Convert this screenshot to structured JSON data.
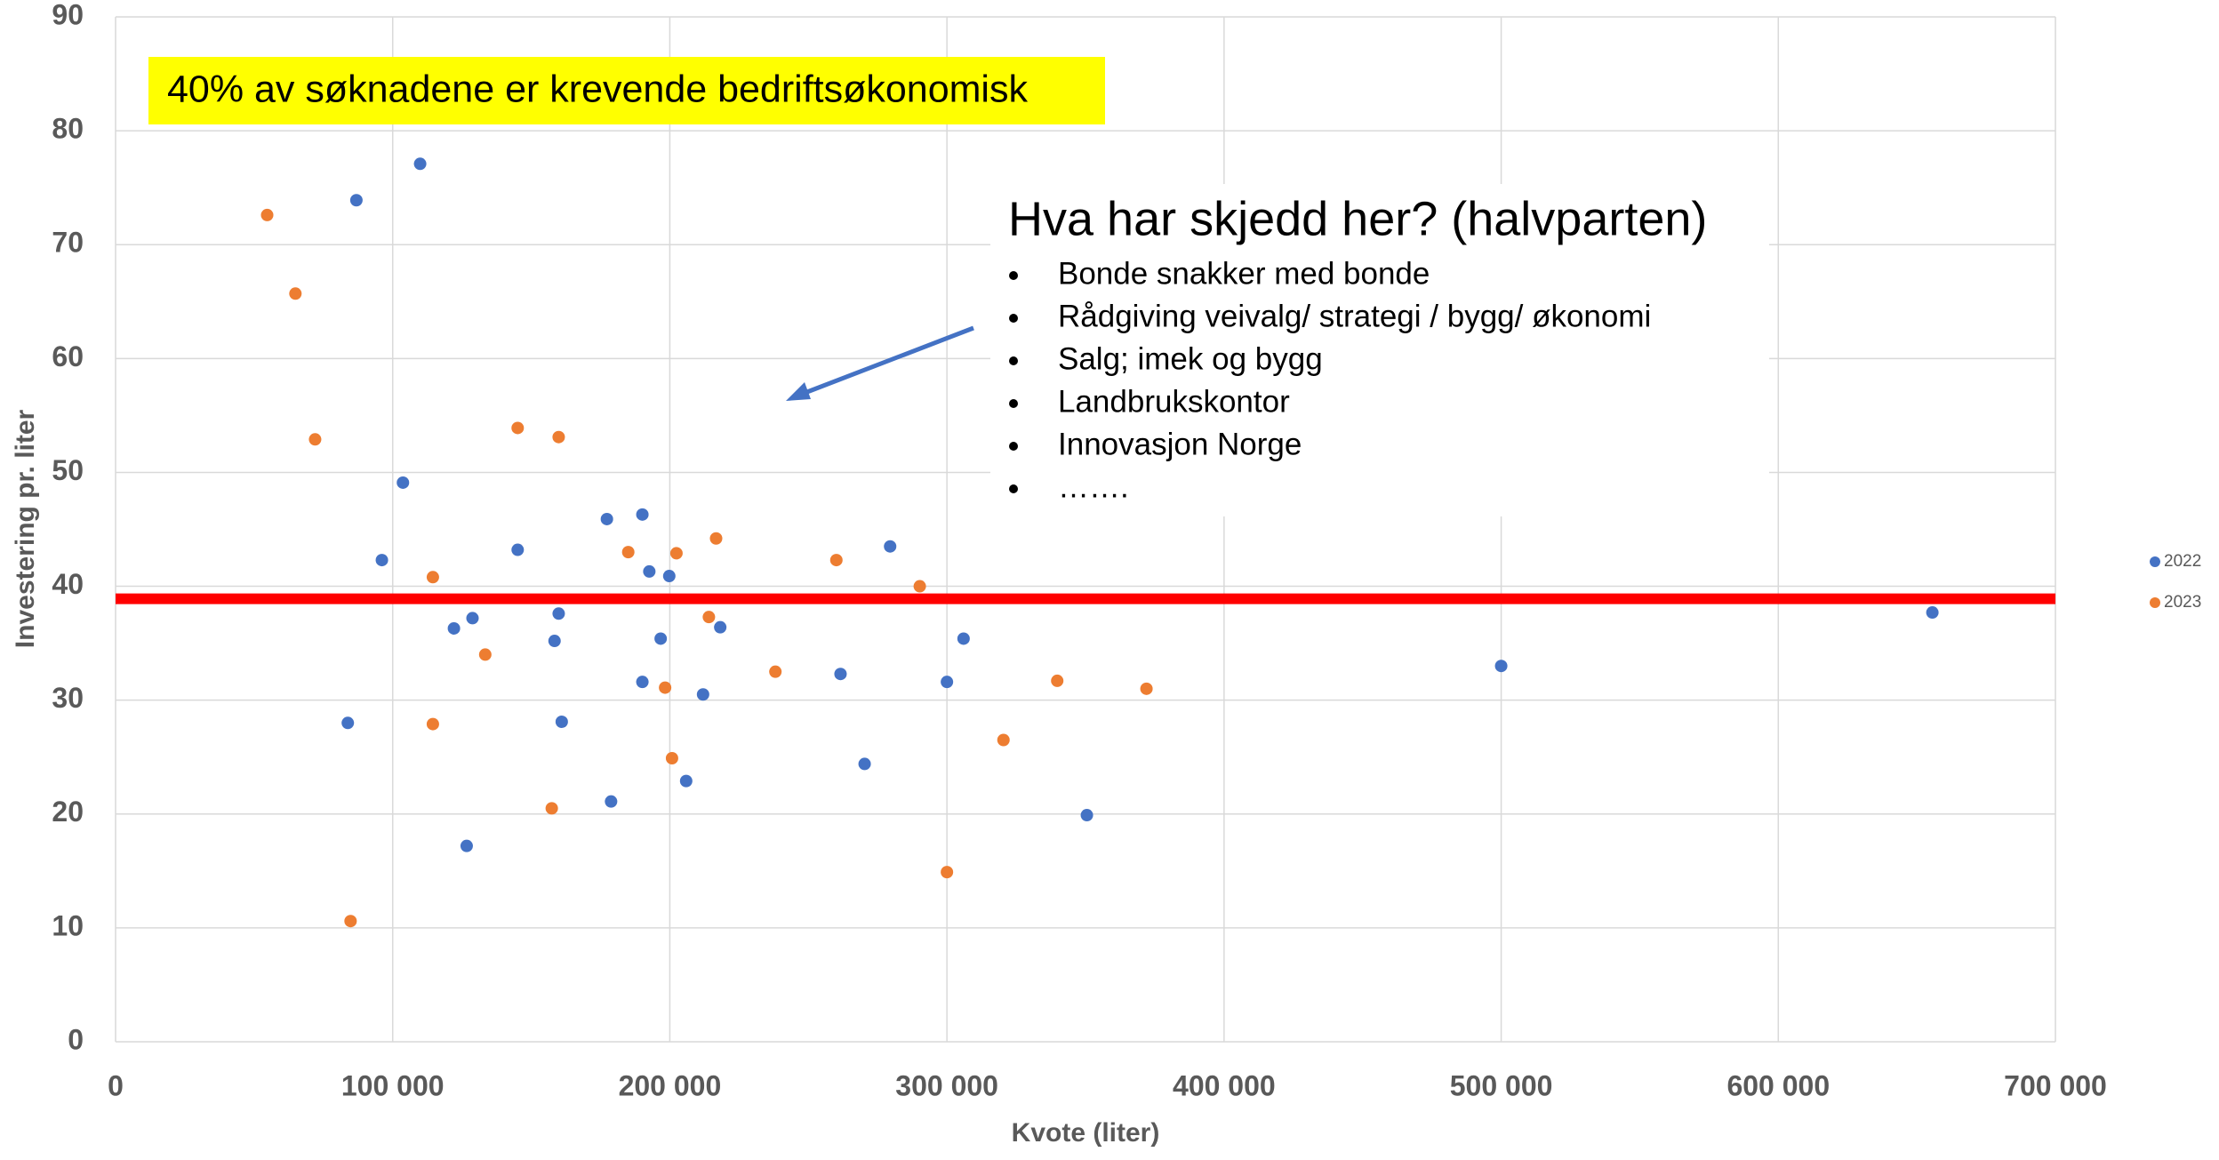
{
  "chart_data": {
    "type": "scatter",
    "xlabel": "Kvote (liter)",
    "ylabel": "Investering pr. liter",
    "xlim": [
      0,
      700000
    ],
    "ylim": [
      0,
      90
    ],
    "xticks": [
      0,
      {
        "value": 100000,
        "label": "100 000"
      },
      {
        "value": 200000,
        "label": "200 000"
      },
      {
        "value": 300000,
        "label": "300 000"
      },
      {
        "value": 400000,
        "label": "400 000"
      },
      {
        "value": 500000,
        "label": "500 000"
      },
      {
        "value": 600000,
        "label": "600 000"
      },
      {
        "value": 700000,
        "label": "700 000"
      }
    ],
    "yticks": [
      0,
      10,
      20,
      30,
      40,
      50,
      60,
      70,
      80,
      90
    ],
    "grid": true,
    "legend": "right",
    "reference_line": {
      "value": 38.9,
      "color": "#ff0000"
    },
    "series": [
      {
        "name": "2022",
        "color": "#4472c4",
        "x": [
          86900,
          109900,
          103700,
          96100,
          83800,
          122100,
          128800,
          126700,
          145100,
          159900,
          158400,
          161000,
          177300,
          190100,
          192600,
          199800,
          196700,
          190100,
          212000,
          218200,
          205900,
          178800,
          261600,
          270300,
          279500,
          306000,
          300000,
          350500,
          500000,
          655600
        ],
        "values": [
          73.9,
          77.1,
          49.1,
          42.3,
          28.0,
          36.3,
          37.2,
          17.2,
          43.2,
          37.6,
          35.2,
          28.1,
          45.9,
          46.3,
          41.3,
          40.9,
          35.4,
          31.6,
          30.5,
          36.4,
          22.9,
          21.1,
          32.3,
          24.4,
          43.5,
          35.4,
          31.6,
          19.9,
          33.0,
          37.7
        ]
      },
      {
        "name": "2023",
        "color": "#ed7d31",
        "x": [
          54700,
          64900,
          72000,
          145100,
          159900,
          114500,
          133400,
          114500,
          84800,
          157400,
          185000,
          202400,
          216700,
          214100,
          198300,
          200800,
          238100,
          260100,
          290200,
          339800,
          320400,
          372000,
          300000
        ],
        "values": [
          72.6,
          65.7,
          52.9,
          53.9,
          53.1,
          40.8,
          34.0,
          27.9,
          10.6,
          20.5,
          43.0,
          42.9,
          44.2,
          37.3,
          31.1,
          24.9,
          32.5,
          42.3,
          40.0,
          31.7,
          26.5,
          31.0,
          14.9
        ]
      }
    ]
  },
  "annotations": {
    "highlight": "40% av søknadene er krevende bedriftsøkonomisk",
    "box_title": "Hva har skjedd her? (halvparten)",
    "bullets": [
      "Bonde snakker med bonde",
      "Rådgiving veivalg/ strategi / bygg/ økonomi",
      "Salg; imek og bygg",
      "Landbrukskontor",
      "Innovasjon Norge",
      "……."
    ]
  }
}
